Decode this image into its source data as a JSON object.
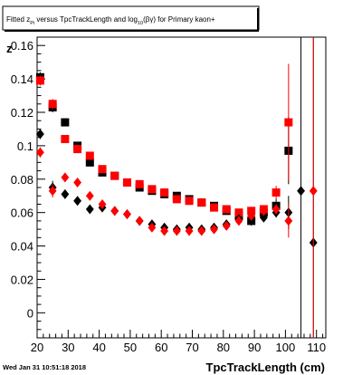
{
  "chart_data": {
    "type": "scatter",
    "title_prefix": "Fitted  z",
    "title_sub": "Pi",
    "title_mid": " versus TpcTrackLength and log",
    "title_sub2": "10",
    "title_suffix": "(βγ) for Primary kaon+",
    "xlabel": "TpcTrackLength (cm)",
    "ylabel": "z",
    "timestamp": "Wed Jan 31 10:51:18 2018",
    "xlim": [
      20,
      113
    ],
    "ylim": [
      -0.015,
      0.165
    ],
    "x_ticks": [
      20,
      30,
      40,
      50,
      60,
      70,
      80,
      90,
      100,
      110
    ],
    "y_ticks": [
      0,
      0.02,
      0.04,
      0.06,
      0.08,
      0.1,
      0.12,
      0.14,
      0.16
    ],
    "y_tick_labels": [
      "0",
      "0.02",
      "0.04",
      "0.06",
      "0.08",
      "0.1",
      "0.12",
      "0.14",
      "0.16"
    ],
    "series": [
      {
        "marker": "square",
        "color": "#000000",
        "points": [
          {
            "x": 21,
            "y": 0.141,
            "err": 0.003
          },
          {
            "x": 25,
            "y": 0.123,
            "err": 0.003
          },
          {
            "x": 29,
            "y": 0.114,
            "err": 0.002
          },
          {
            "x": 33,
            "y": 0.1,
            "err": 0.002
          },
          {
            "x": 37,
            "y": 0.09,
            "err": 0.002
          },
          {
            "x": 41,
            "y": 0.084,
            "err": 0.001
          },
          {
            "x": 45,
            "y": 0.082,
            "err": 0.001
          },
          {
            "x": 49,
            "y": 0.078,
            "err": 0.001
          },
          {
            "x": 53,
            "y": 0.075,
            "err": 0.001
          },
          {
            "x": 57,
            "y": 0.073,
            "err": 0.001
          },
          {
            "x": 61,
            "y": 0.071,
            "err": 0.001
          },
          {
            "x": 65,
            "y": 0.07,
            "err": 0.001
          },
          {
            "x": 69,
            "y": 0.068,
            "err": 0.001
          },
          {
            "x": 73,
            "y": 0.066,
            "err": 0.001
          },
          {
            "x": 77,
            "y": 0.064,
            "err": 0.001
          },
          {
            "x": 81,
            "y": 0.061,
            "err": 0.001
          },
          {
            "x": 85,
            "y": 0.058,
            "err": 0.001
          },
          {
            "x": 89,
            "y": 0.055,
            "err": 0.001
          },
          {
            "x": 93,
            "y": 0.06,
            "err": 0.002
          },
          {
            "x": 97,
            "y": 0.064,
            "err": 0.004
          },
          {
            "x": 101,
            "y": 0.097,
            "err": 0.02
          }
        ]
      },
      {
        "marker": "square",
        "color": "#ff0000",
        "points": [
          {
            "x": 21,
            "y": 0.139,
            "err": 0.003
          },
          {
            "x": 25,
            "y": 0.125,
            "err": 0.003
          },
          {
            "x": 29,
            "y": 0.104,
            "err": 0.002
          },
          {
            "x": 33,
            "y": 0.098,
            "err": 0.002
          },
          {
            "x": 37,
            "y": 0.094,
            "err": 0.002
          },
          {
            "x": 41,
            "y": 0.086,
            "err": 0.001
          },
          {
            "x": 45,
            "y": 0.082,
            "err": 0.001
          },
          {
            "x": 49,
            "y": 0.078,
            "err": 0.001
          },
          {
            "x": 53,
            "y": 0.077,
            "err": 0.001
          },
          {
            "x": 57,
            "y": 0.074,
            "err": 0.001
          },
          {
            "x": 61,
            "y": 0.072,
            "err": 0.001
          },
          {
            "x": 65,
            "y": 0.068,
            "err": 0.001
          },
          {
            "x": 69,
            "y": 0.067,
            "err": 0.001
          },
          {
            "x": 73,
            "y": 0.066,
            "err": 0.001
          },
          {
            "x": 77,
            "y": 0.063,
            "err": 0.001
          },
          {
            "x": 81,
            "y": 0.062,
            "err": 0.001
          },
          {
            "x": 85,
            "y": 0.06,
            "err": 0.001
          },
          {
            "x": 89,
            "y": 0.061,
            "err": 0.001
          },
          {
            "x": 93,
            "y": 0.062,
            "err": 0.002
          },
          {
            "x": 97,
            "y": 0.072,
            "err": 0.004
          },
          {
            "x": 101,
            "y": 0.114,
            "err": 0.035
          }
        ]
      },
      {
        "marker": "diamond",
        "color": "#000000",
        "points": [
          {
            "x": 21,
            "y": 0.107,
            "err": 0.003
          },
          {
            "x": 25,
            "y": 0.075,
            "err": 0.004
          },
          {
            "x": 29,
            "y": 0.071,
            "err": 0.002
          },
          {
            "x": 33,
            "y": 0.067,
            "err": 0.002
          },
          {
            "x": 37,
            "y": 0.062,
            "err": 0.002
          },
          {
            "x": 41,
            "y": 0.063,
            "err": 0.001
          },
          {
            "x": 45,
            "y": 0.061,
            "err": 0.001
          },
          {
            "x": 49,
            "y": 0.059,
            "err": 0.001
          },
          {
            "x": 53,
            "y": 0.055,
            "err": 0.001
          },
          {
            "x": 57,
            "y": 0.053,
            "err": 0.001
          },
          {
            "x": 61,
            "y": 0.051,
            "err": 0.001
          },
          {
            "x": 65,
            "y": 0.05,
            "err": 0.001
          },
          {
            "x": 69,
            "y": 0.051,
            "err": 0.001
          },
          {
            "x": 73,
            "y": 0.05,
            "err": 0.001
          },
          {
            "x": 77,
            "y": 0.051,
            "err": 0.001
          },
          {
            "x": 81,
            "y": 0.053,
            "err": 0.001
          },
          {
            "x": 85,
            "y": 0.056,
            "err": 0.001
          },
          {
            "x": 89,
            "y": 0.055,
            "err": 0.002
          },
          {
            "x": 93,
            "y": 0.057,
            "err": 0.002
          },
          {
            "x": 97,
            "y": 0.06,
            "err": 0.003
          },
          {
            "x": 101,
            "y": 0.06,
            "err": 0.01
          },
          {
            "x": 105,
            "y": 0.073,
            "err": 0.15
          },
          {
            "x": 109,
            "y": 0.042,
            "err": 0.15
          }
        ]
      },
      {
        "marker": "diamond",
        "color": "#ff0000",
        "points": [
          {
            "x": 21,
            "y": 0.096,
            "err": 0.003
          },
          {
            "x": 25,
            "y": 0.073,
            "err": 0.004
          },
          {
            "x": 29,
            "y": 0.081,
            "err": 0.002
          },
          {
            "x": 33,
            "y": 0.078,
            "err": 0.002
          },
          {
            "x": 37,
            "y": 0.07,
            "err": 0.002
          },
          {
            "x": 41,
            "y": 0.065,
            "err": 0.001
          },
          {
            "x": 45,
            "y": 0.061,
            "err": 0.001
          },
          {
            "x": 49,
            "y": 0.059,
            "err": 0.001
          },
          {
            "x": 53,
            "y": 0.055,
            "err": 0.001
          },
          {
            "x": 57,
            "y": 0.051,
            "err": 0.001
          },
          {
            "x": 61,
            "y": 0.049,
            "err": 0.001
          },
          {
            "x": 65,
            "y": 0.049,
            "err": 0.001
          },
          {
            "x": 69,
            "y": 0.049,
            "err": 0.001
          },
          {
            "x": 73,
            "y": 0.049,
            "err": 0.001
          },
          {
            "x": 77,
            "y": 0.05,
            "err": 0.001
          },
          {
            "x": 81,
            "y": 0.052,
            "err": 0.001
          },
          {
            "x": 85,
            "y": 0.055,
            "err": 0.001
          },
          {
            "x": 89,
            "y": 0.058,
            "err": 0.002
          },
          {
            "x": 93,
            "y": 0.061,
            "err": 0.002
          },
          {
            "x": 97,
            "y": 0.062,
            "err": 0.003
          },
          {
            "x": 101,
            "y": 0.055,
            "err": 0.01
          },
          {
            "x": 109,
            "y": 0.073,
            "err": 0.15
          }
        ]
      }
    ]
  }
}
